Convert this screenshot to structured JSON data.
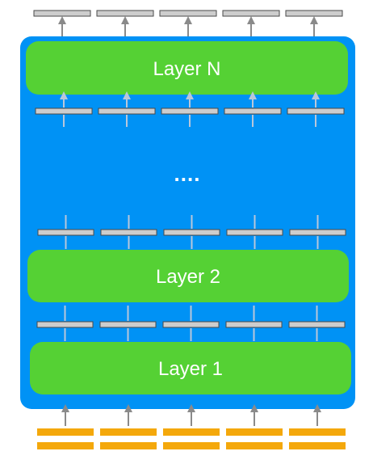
{
  "diagram": {
    "layers": [
      {
        "label": "Layer N"
      },
      {
        "label": "Layer 2"
      },
      {
        "label": "Layer 1"
      }
    ],
    "ellipsis": "....",
    "token_count": 5,
    "colors": {
      "stack_background": "#0092f5",
      "layer_fill": "#55d134",
      "token_vector_fill": "#cdcdcd",
      "token_vector_stroke": "#4a4a4a",
      "input_embedding": "#f4a80b",
      "arrow_inside": "#b9c7da",
      "arrow_outside": "#8a8a8a",
      "label_text": "#ffffff"
    }
  }
}
